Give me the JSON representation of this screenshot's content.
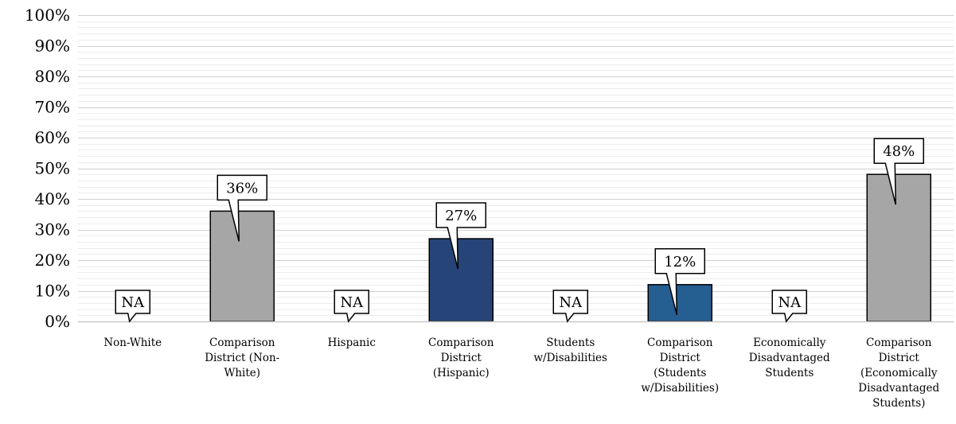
{
  "chart_data": {
    "type": "bar",
    "ylim": [
      0,
      100
    ],
    "yticks": [
      0,
      10,
      20,
      30,
      40,
      50,
      60,
      70,
      80,
      90,
      100
    ],
    "ytick_labels": [
      "0%",
      "10%",
      "20%",
      "30%",
      "40%",
      "50%",
      "60%",
      "70%",
      "80%",
      "90%",
      "100%"
    ],
    "grid": "on",
    "categories": [
      [
        "Non-White"
      ],
      [
        "Comparison",
        "District (Non-",
        "White)"
      ],
      [
        "Hispanic"
      ],
      [
        "Comparison",
        "District",
        "(Hispanic)"
      ],
      [
        "Students",
        "w/Disabilities"
      ],
      [
        "Comparison",
        "District",
        "(Students",
        "w/Disabilities)"
      ],
      [
        "Economically",
        "Disadvantaged",
        "Students"
      ],
      [
        "Comparison",
        "District",
        "(Economically",
        "Disadvantaged",
        "Students)"
      ]
    ],
    "values": [
      null,
      36,
      null,
      27,
      null,
      12,
      null,
      48
    ],
    "data_labels": [
      "NA",
      "36%",
      "NA",
      "27%",
      "NA",
      "12%",
      "NA",
      "48%"
    ],
    "bar_colors": [
      "#a6a6a6",
      "#a6a6a6",
      "#264478",
      "#264478",
      "#255e91",
      "#255e91",
      "#a6a6a6",
      "#a6a6a6"
    ]
  }
}
